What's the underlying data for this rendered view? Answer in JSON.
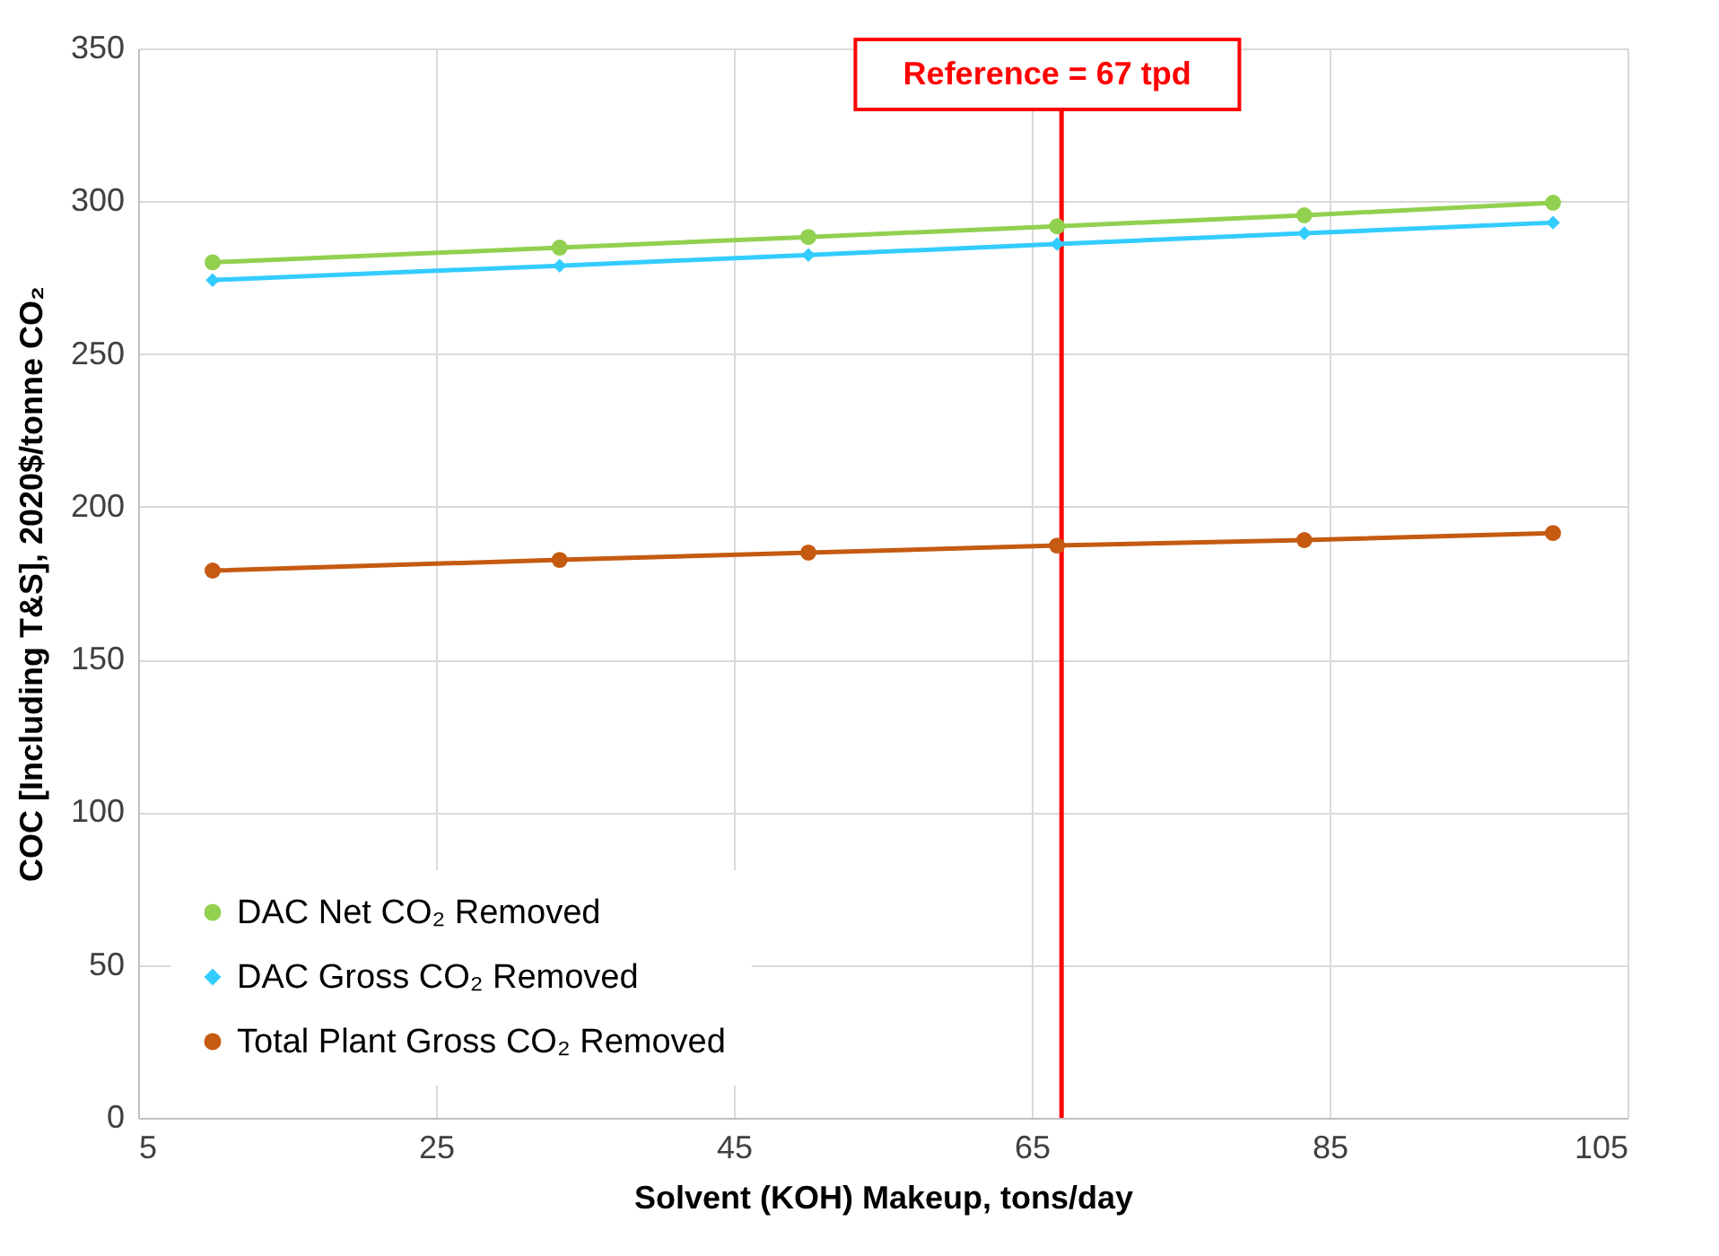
{
  "chart_data": {
    "type": "line",
    "xlabel": "Solvent (KOH) Makeup, tons/day",
    "ylabel": "COC [Including T&S], 2020$/tonne CO₂",
    "x": [
      10,
      33.3,
      50,
      66.7,
      83.3,
      100
    ],
    "series": [
      {
        "name": "DAC Net CO₂ Removed",
        "color": "#92d050",
        "marker": "circle",
        "values": [
          280,
          284.8,
          288.3,
          291.8,
          295.4,
          299.5
        ]
      },
      {
        "name": "DAC Gross CO₂ Removed",
        "color": "#33ccff",
        "marker": "diamond",
        "values": [
          274.2,
          278.9,
          282.4,
          286,
          289.5,
          293
        ]
      },
      {
        "name": "Total Plant Gross CO₂ Removed",
        "color": "#c55a11",
        "marker": "circle",
        "values": [
          179.1,
          182.6,
          185,
          187.3,
          189.1,
          191.4
        ]
      }
    ],
    "xlim": [
      5,
      105
    ],
    "xticks": [
      5,
      25,
      45,
      65,
      85,
      105
    ],
    "ylim": [
      0,
      350
    ],
    "yticks": [
      0,
      50,
      100,
      150,
      200,
      250,
      300,
      350
    ],
    "ref_lines": [
      {
        "axis": "x",
        "value": 67,
        "label": "Reference = 67 tpd",
        "color": "#ff0000"
      }
    ],
    "grid": true,
    "legend": "bottom left"
  }
}
